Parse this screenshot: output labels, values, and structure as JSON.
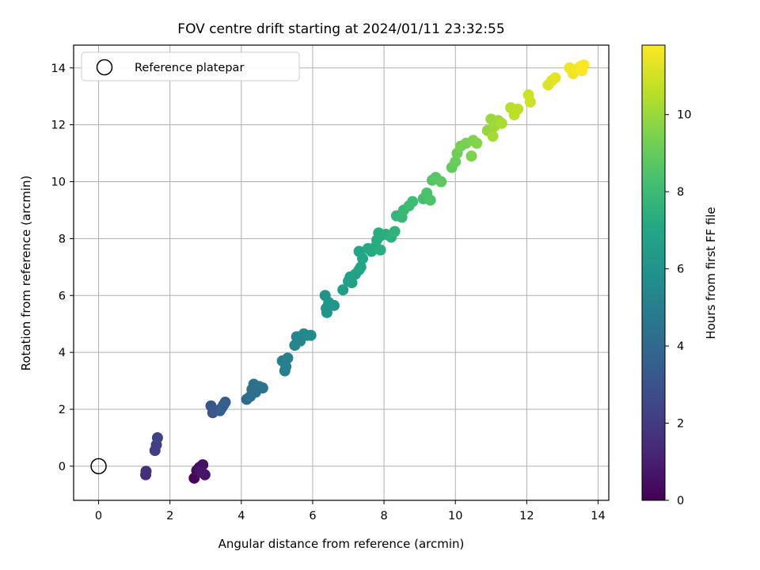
{
  "chart_data": {
    "type": "scatter",
    "title": "FOV centre drift starting at 2024/01/11 23:32:55",
    "xlabel": "Angular distance from reference (arcmin)",
    "ylabel": "Rotation from reference (arcmin)",
    "xlim": [
      -0.7,
      14.3
    ],
    "ylim": [
      -1.2,
      14.8
    ],
    "xticks": [
      "0",
      "2",
      "4",
      "6",
      "8",
      "10",
      "12",
      "14"
    ],
    "yticks": [
      "0",
      "2",
      "4",
      "6",
      "8",
      "10",
      "12",
      "14"
    ],
    "grid": true,
    "legend": {
      "placement": "top-left",
      "entries": [
        "Reference platepar"
      ]
    },
    "reference_point": {
      "x": 0,
      "y": 0
    },
    "colorbar": {
      "label": "Hours from first FF file",
      "range": [
        0,
        11.8
      ],
      "ticks": [
        "0",
        "2",
        "4",
        "6",
        "8",
        "10"
      ],
      "colormap": "viridis"
    },
    "series": [
      {
        "points": [
          {
            "x": 2.68,
            "y": -0.42,
            "c": 0.2
          },
          {
            "x": 2.75,
            "y": -0.15,
            "c": 0.3
          },
          {
            "x": 2.82,
            "y": -0.05,
            "c": 0.4
          },
          {
            "x": 2.88,
            "y": 0.0,
            "c": 0.5
          },
          {
            "x": 2.92,
            "y": 0.05,
            "c": 0.55
          },
          {
            "x": 2.98,
            "y": -0.3,
            "c": 0.6
          },
          {
            "x": 2.85,
            "y": -0.2,
            "c": 0.7
          },
          {
            "x": 1.32,
            "y": -0.3,
            "c": 1.5
          },
          {
            "x": 1.33,
            "y": -0.18,
            "c": 1.6
          },
          {
            "x": 1.58,
            "y": 0.55,
            "c": 2.1
          },
          {
            "x": 1.62,
            "y": 0.75,
            "c": 2.2
          },
          {
            "x": 1.65,
            "y": 1.0,
            "c": 2.3
          },
          {
            "x": 3.15,
            "y": 2.12,
            "c": 3.1
          },
          {
            "x": 3.2,
            "y": 1.88,
            "c": 3.2
          },
          {
            "x": 3.4,
            "y": 1.95,
            "c": 3.3
          },
          {
            "x": 3.5,
            "y": 2.15,
            "c": 3.4
          },
          {
            "x": 3.55,
            "y": 2.25,
            "c": 3.5
          },
          {
            "x": 3.45,
            "y": 2.05,
            "c": 3.45
          },
          {
            "x": 4.15,
            "y": 2.35,
            "c": 4.1
          },
          {
            "x": 4.25,
            "y": 2.45,
            "c": 4.2
          },
          {
            "x": 4.3,
            "y": 2.7,
            "c": 4.3
          },
          {
            "x": 4.35,
            "y": 2.88,
            "c": 4.35
          },
          {
            "x": 4.5,
            "y": 2.8,
            "c": 4.4
          },
          {
            "x": 4.6,
            "y": 2.75,
            "c": 4.45
          },
          {
            "x": 4.4,
            "y": 2.6,
            "c": 4.3
          },
          {
            "x": 5.15,
            "y": 3.7,
            "c": 5.0
          },
          {
            "x": 5.22,
            "y": 3.35,
            "c": 5.05
          },
          {
            "x": 5.25,
            "y": 3.5,
            "c": 5.1
          },
          {
            "x": 5.3,
            "y": 3.8,
            "c": 5.15
          },
          {
            "x": 5.5,
            "y": 4.25,
            "c": 5.3
          },
          {
            "x": 5.55,
            "y": 4.55,
            "c": 5.35
          },
          {
            "x": 5.65,
            "y": 4.4,
            "c": 5.4
          },
          {
            "x": 5.75,
            "y": 4.65,
            "c": 5.5
          },
          {
            "x": 5.85,
            "y": 4.6,
            "c": 5.55
          },
          {
            "x": 5.95,
            "y": 4.6,
            "c": 5.6
          },
          {
            "x": 6.35,
            "y": 6.0,
            "c": 6.0
          },
          {
            "x": 6.38,
            "y": 5.55,
            "c": 6.05
          },
          {
            "x": 6.4,
            "y": 5.4,
            "c": 6.1
          },
          {
            "x": 6.45,
            "y": 5.75,
            "c": 6.15
          },
          {
            "x": 6.6,
            "y": 5.65,
            "c": 6.2
          },
          {
            "x": 6.85,
            "y": 6.2,
            "c": 6.5
          },
          {
            "x": 7.0,
            "y": 6.5,
            "c": 6.6
          },
          {
            "x": 7.05,
            "y": 6.65,
            "c": 6.65
          },
          {
            "x": 7.1,
            "y": 6.45,
            "c": 6.7
          },
          {
            "x": 7.2,
            "y": 6.75,
            "c": 6.75
          },
          {
            "x": 7.3,
            "y": 6.9,
            "c": 6.8
          },
          {
            "x": 7.35,
            "y": 7.0,
            "c": 6.85
          },
          {
            "x": 7.3,
            "y": 7.55,
            "c": 7.0
          },
          {
            "x": 7.4,
            "y": 7.3,
            "c": 7.05
          },
          {
            "x": 7.55,
            "y": 7.65,
            "c": 7.1
          },
          {
            "x": 7.65,
            "y": 7.55,
            "c": 7.15
          },
          {
            "x": 7.75,
            "y": 7.7,
            "c": 7.2
          },
          {
            "x": 7.8,
            "y": 7.95,
            "c": 7.25
          },
          {
            "x": 7.9,
            "y": 8.1,
            "c": 7.3
          },
          {
            "x": 7.9,
            "y": 7.6,
            "c": 7.35
          },
          {
            "x": 7.85,
            "y": 8.2,
            "c": 7.3
          },
          {
            "x": 8.05,
            "y": 8.15,
            "c": 7.4
          },
          {
            "x": 8.2,
            "y": 8.05,
            "c": 7.5
          },
          {
            "x": 8.3,
            "y": 8.25,
            "c": 7.6
          },
          {
            "x": 8.35,
            "y": 8.8,
            "c": 7.7
          },
          {
            "x": 8.5,
            "y": 8.75,
            "c": 7.8
          },
          {
            "x": 8.55,
            "y": 9.0,
            "c": 7.9
          },
          {
            "x": 8.7,
            "y": 9.15,
            "c": 8.0
          },
          {
            "x": 8.8,
            "y": 9.3,
            "c": 8.1
          },
          {
            "x": 9.1,
            "y": 9.4,
            "c": 8.3
          },
          {
            "x": 9.2,
            "y": 9.6,
            "c": 8.4
          },
          {
            "x": 9.3,
            "y": 9.35,
            "c": 8.45
          },
          {
            "x": 9.35,
            "y": 10.05,
            "c": 8.6
          },
          {
            "x": 9.45,
            "y": 10.15,
            "c": 8.7
          },
          {
            "x": 9.6,
            "y": 10.0,
            "c": 8.8
          },
          {
            "x": 9.9,
            "y": 10.5,
            "c": 9.0
          },
          {
            "x": 10.0,
            "y": 10.7,
            "c": 9.1
          },
          {
            "x": 10.05,
            "y": 11.0,
            "c": 9.2
          },
          {
            "x": 10.15,
            "y": 11.25,
            "c": 9.3
          },
          {
            "x": 10.3,
            "y": 11.35,
            "c": 9.4
          },
          {
            "x": 10.45,
            "y": 10.9,
            "c": 9.5
          },
          {
            "x": 10.5,
            "y": 11.45,
            "c": 9.55
          },
          {
            "x": 10.6,
            "y": 11.35,
            "c": 9.6
          },
          {
            "x": 10.9,
            "y": 11.8,
            "c": 9.9
          },
          {
            "x": 11.0,
            "y": 12.2,
            "c": 10.0
          },
          {
            "x": 11.1,
            "y": 11.95,
            "c": 10.1
          },
          {
            "x": 11.2,
            "y": 12.15,
            "c": 10.15
          },
          {
            "x": 11.05,
            "y": 11.6,
            "c": 10.2
          },
          {
            "x": 11.3,
            "y": 12.05,
            "c": 10.25
          },
          {
            "x": 11.55,
            "y": 12.6,
            "c": 10.5
          },
          {
            "x": 11.65,
            "y": 12.35,
            "c": 10.6
          },
          {
            "x": 11.75,
            "y": 12.55,
            "c": 10.65
          },
          {
            "x": 12.05,
            "y": 13.05,
            "c": 10.9
          },
          {
            "x": 12.1,
            "y": 12.8,
            "c": 10.95
          },
          {
            "x": 12.6,
            "y": 13.4,
            "c": 11.2
          },
          {
            "x": 12.7,
            "y": 13.55,
            "c": 11.25
          },
          {
            "x": 12.8,
            "y": 13.65,
            "c": 11.3
          },
          {
            "x": 13.2,
            "y": 14.0,
            "c": 11.5
          },
          {
            "x": 13.3,
            "y": 13.8,
            "c": 11.55
          },
          {
            "x": 13.4,
            "y": 13.95,
            "c": 11.6
          },
          {
            "x": 13.5,
            "y": 14.05,
            "c": 11.7
          },
          {
            "x": 13.55,
            "y": 13.9,
            "c": 11.75
          },
          {
            "x": 13.6,
            "y": 14.1,
            "c": 11.8
          }
        ]
      }
    ]
  }
}
